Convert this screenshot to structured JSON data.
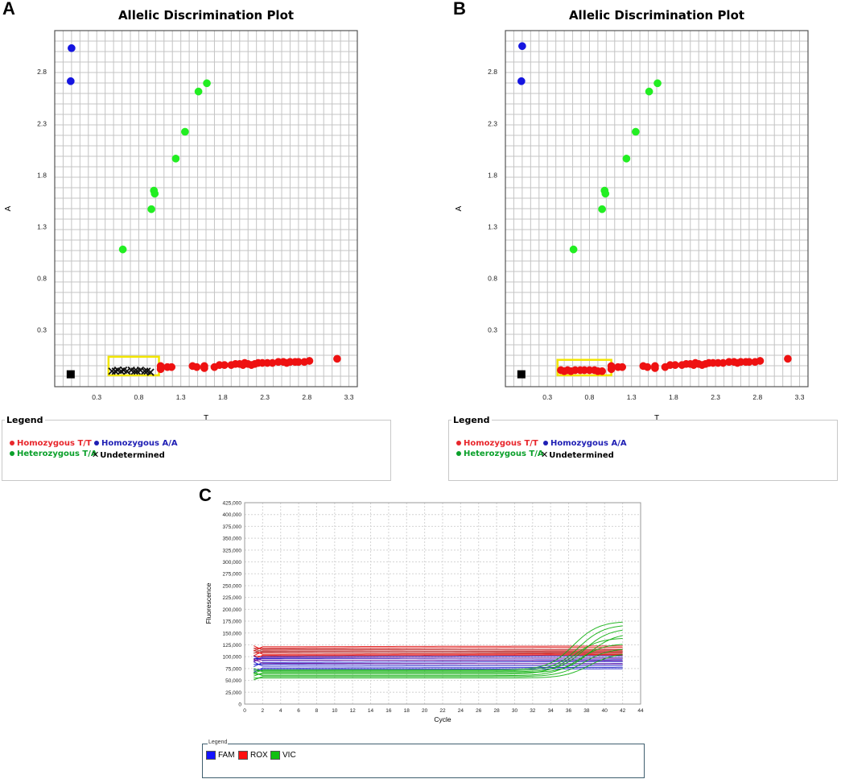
{
  "panels": {
    "a": "A",
    "b": "B",
    "c": "C"
  },
  "legend_ab": {
    "heading": "Legend",
    "items": [
      {
        "label": "Homozygous T/T",
        "color": "#e8262c",
        "marker": "dot"
      },
      {
        "label": "Homozygous A/A",
        "color": "#1f1fb4",
        "marker": "dot"
      },
      {
        "label": "Heterozygous T/A",
        "color": "#0aa02a",
        "marker": "dot"
      },
      {
        "label": "Undetermined",
        "color": "#000000",
        "marker": "x"
      }
    ]
  },
  "legend_c": {
    "title": "Legend",
    "items": [
      {
        "label": "FAM",
        "color": "#1414ff"
      },
      {
        "label": "ROX",
        "color": "#ff1010"
      },
      {
        "label": "VIC",
        "color": "#10c010"
      }
    ]
  },
  "chart_data": [
    {
      "id": "A",
      "type": "scatter",
      "title": "Allelic Discrimination Plot",
      "xlabel": "T",
      "ylabel": "A",
      "xlim": [
        -0.2,
        3.4
      ],
      "ylim": [
        -0.25,
        3.2
      ],
      "xticks": [
        "0.3",
        "0.8",
        "1.3",
        "1.8",
        "2.3",
        "2.8",
        "3.3"
      ],
      "yticks": [
        "0.3",
        "0.8",
        "1.3",
        "1.8",
        "2.3",
        "2.8"
      ],
      "grid": true,
      "highlight_box": {
        "x": [
          0.44,
          1.04
        ],
        "y": [
          -0.14,
          0.04
        ],
        "color": "#f2e600"
      },
      "series": [
        {
          "name": "Homozygous A/A",
          "color": "#1515e0",
          "points": [
            [
              0.0,
              3.03
            ],
            [
              -0.01,
              2.71
            ]
          ]
        },
        {
          "name": "Heterozygous T/A",
          "color": "#22ee22",
          "points": [
            [
              0.61,
              1.08
            ],
            [
              0.95,
              1.47
            ],
            [
              0.98,
              1.65
            ],
            [
              0.99,
              1.62
            ],
            [
              1.24,
              1.96
            ],
            [
              1.35,
              2.22
            ],
            [
              1.51,
              2.61
            ],
            [
              1.61,
              2.69
            ]
          ]
        },
        {
          "name": "Homozygous T/T",
          "color": "#ee1111",
          "points": [
            [
              1.06,
              -0.05
            ],
            [
              1.06,
              -0.08
            ],
            [
              1.14,
              -0.06
            ],
            [
              1.19,
              -0.06
            ],
            [
              1.44,
              -0.05
            ],
            [
              1.49,
              -0.06
            ],
            [
              1.58,
              -0.05
            ],
            [
              1.58,
              -0.07
            ],
            [
              1.7,
              -0.06
            ],
            [
              1.76,
              -0.04
            ],
            [
              1.82,
              -0.04
            ],
            [
              1.9,
              -0.04
            ],
            [
              1.95,
              -0.03
            ],
            [
              2.0,
              -0.03
            ],
            [
              2.04,
              -0.04
            ],
            [
              2.06,
              -0.02
            ],
            [
              2.1,
              -0.03
            ],
            [
              2.14,
              -0.04
            ],
            [
              2.18,
              -0.03
            ],
            [
              2.22,
              -0.02
            ],
            [
              2.27,
              -0.02
            ],
            [
              2.33,
              -0.02
            ],
            [
              2.39,
              -0.02
            ],
            [
              2.46,
              -0.01
            ],
            [
              2.52,
              -0.01
            ],
            [
              2.56,
              -0.02
            ],
            [
              2.6,
              -0.01
            ],
            [
              2.66,
              -0.01
            ],
            [
              2.7,
              -0.01
            ],
            [
              2.77,
              -0.01
            ],
            [
              2.83,
              0.0
            ],
            [
              3.16,
              0.02
            ]
          ]
        },
        {
          "name": "Undetermined",
          "color": "#000000",
          "marker": "x",
          "points": [
            [
              0.48,
              -0.1
            ],
            [
              0.52,
              -0.1
            ],
            [
              0.55,
              -0.09
            ],
            [
              0.59,
              -0.1
            ],
            [
              0.62,
              -0.09
            ],
            [
              0.66,
              -0.1
            ],
            [
              0.71,
              -0.09
            ],
            [
              0.75,
              -0.1
            ],
            [
              0.78,
              -0.1
            ],
            [
              0.82,
              -0.09
            ],
            [
              0.87,
              -0.1
            ],
            [
              0.9,
              -0.1
            ],
            [
              0.94,
              -0.11
            ]
          ]
        },
        {
          "name": "NTC",
          "color": "#000000",
          "marker": "square",
          "points": [
            [
              -0.01,
              -0.13
            ]
          ]
        }
      ]
    },
    {
      "id": "B",
      "type": "scatter",
      "title": "Allelic Discrimination Plot",
      "xlabel": "T",
      "ylabel": "A",
      "xlim": [
        -0.2,
        3.4
      ],
      "ylim": [
        -0.25,
        3.2
      ],
      "xticks": [
        "0.3",
        "0.8",
        "1.3",
        "1.8",
        "2.3",
        "2.8",
        "3.3"
      ],
      "yticks": [
        "0.3",
        "0.8",
        "1.3",
        "1.8",
        "2.3",
        "2.8"
      ],
      "grid": true,
      "highlight_box": {
        "x": [
          0.42,
          1.06
        ],
        "y": [
          -0.14,
          0.01
        ],
        "color": "#f2e600"
      },
      "series": [
        {
          "name": "Homozygous A/A",
          "color": "#1515e0",
          "points": [
            [
              0.0,
              3.05
            ],
            [
              -0.01,
              2.71
            ]
          ]
        },
        {
          "name": "Heterozygous T/A",
          "color": "#22ee22",
          "points": [
            [
              0.61,
              1.08
            ],
            [
              0.95,
              1.47
            ],
            [
              0.98,
              1.65
            ],
            [
              0.99,
              1.62
            ],
            [
              1.24,
              1.96
            ],
            [
              1.35,
              2.22
            ],
            [
              1.51,
              2.61
            ],
            [
              1.61,
              2.69
            ]
          ]
        },
        {
          "name": "Homozygous T/T",
          "color": "#ee1111",
          "points": [
            [
              0.46,
              -0.09
            ],
            [
              0.5,
              -0.1
            ],
            [
              0.54,
              -0.09
            ],
            [
              0.58,
              -0.1
            ],
            [
              0.63,
              -0.09
            ],
            [
              0.69,
              -0.09
            ],
            [
              0.74,
              -0.09
            ],
            [
              0.8,
              -0.09
            ],
            [
              0.86,
              -0.09
            ],
            [
              0.9,
              -0.1
            ],
            [
              0.95,
              -0.1
            ],
            [
              1.06,
              -0.05
            ],
            [
              1.06,
              -0.08
            ],
            [
              1.14,
              -0.06
            ],
            [
              1.19,
              -0.06
            ],
            [
              1.44,
              -0.05
            ],
            [
              1.49,
              -0.06
            ],
            [
              1.58,
              -0.05
            ],
            [
              1.58,
              -0.07
            ],
            [
              1.7,
              -0.06
            ],
            [
              1.76,
              -0.04
            ],
            [
              1.82,
              -0.04
            ],
            [
              1.9,
              -0.04
            ],
            [
              1.95,
              -0.03
            ],
            [
              2.0,
              -0.03
            ],
            [
              2.04,
              -0.04
            ],
            [
              2.06,
              -0.02
            ],
            [
              2.1,
              -0.03
            ],
            [
              2.14,
              -0.04
            ],
            [
              2.18,
              -0.03
            ],
            [
              2.22,
              -0.02
            ],
            [
              2.27,
              -0.02
            ],
            [
              2.33,
              -0.02
            ],
            [
              2.39,
              -0.02
            ],
            [
              2.46,
              -0.01
            ],
            [
              2.52,
              -0.01
            ],
            [
              2.56,
              -0.02
            ],
            [
              2.6,
              -0.01
            ],
            [
              2.66,
              -0.01
            ],
            [
              2.7,
              -0.01
            ],
            [
              2.77,
              -0.01
            ],
            [
              2.83,
              0.0
            ],
            [
              3.16,
              0.02
            ]
          ]
        },
        {
          "name": "NTC",
          "color": "#000000",
          "marker": "square",
          "points": [
            [
              -0.01,
              -0.13
            ]
          ]
        }
      ]
    },
    {
      "id": "C",
      "type": "line",
      "title": "",
      "xlabel": "Cycle",
      "ylabel": "Fluorescence",
      "xlim": [
        0,
        44
      ],
      "ylim": [
        0,
        425000
      ],
      "xticks": [
        "0",
        "2",
        "4",
        "6",
        "8",
        "10",
        "12",
        "14",
        "16",
        "18",
        "20",
        "22",
        "24",
        "26",
        "28",
        "30",
        "32",
        "34",
        "36",
        "38",
        "40",
        "42",
        "44"
      ],
      "yticks": [
        "0",
        "25,000",
        "50,000",
        "75,000",
        "100,000",
        "125,000",
        "150,000",
        "175,000",
        "200,000",
        "225,000",
        "250,000",
        "275,000",
        "300,000",
        "325,000",
        "350,000",
        "375,000",
        "400,000",
        "425,000"
      ],
      "grid": true,
      "cycle_range": [
        1,
        42
      ],
      "series": [
        {
          "name": "ROX",
          "color": "#e01010",
          "baselines": [
            121000,
            118000,
            114000,
            111000,
            108000,
            105000,
            103000,
            101000
          ]
        },
        {
          "name": "ROX",
          "color": "#b05050",
          "baselines": [
            116000,
            112000,
            109000
          ]
        },
        {
          "name": "FAM",
          "color": "#1414c8",
          "baselines": [
            100000,
            96000,
            92000,
            88000,
            84000,
            80000,
            76000,
            73000
          ]
        },
        {
          "name": "FAM",
          "color": "#8020a0",
          "baselines": [
            98000,
            93000,
            86000
          ]
        },
        {
          "name": "VIC",
          "color": "#10b010",
          "baselines": [
            72000,
            70000,
            68000,
            66000,
            63000,
            60000,
            58000,
            55000
          ],
          "plateaus": [
            175000,
            168000,
            160000,
            150000,
            140000,
            128000,
            118000,
            108000
          ]
        }
      ]
    }
  ]
}
